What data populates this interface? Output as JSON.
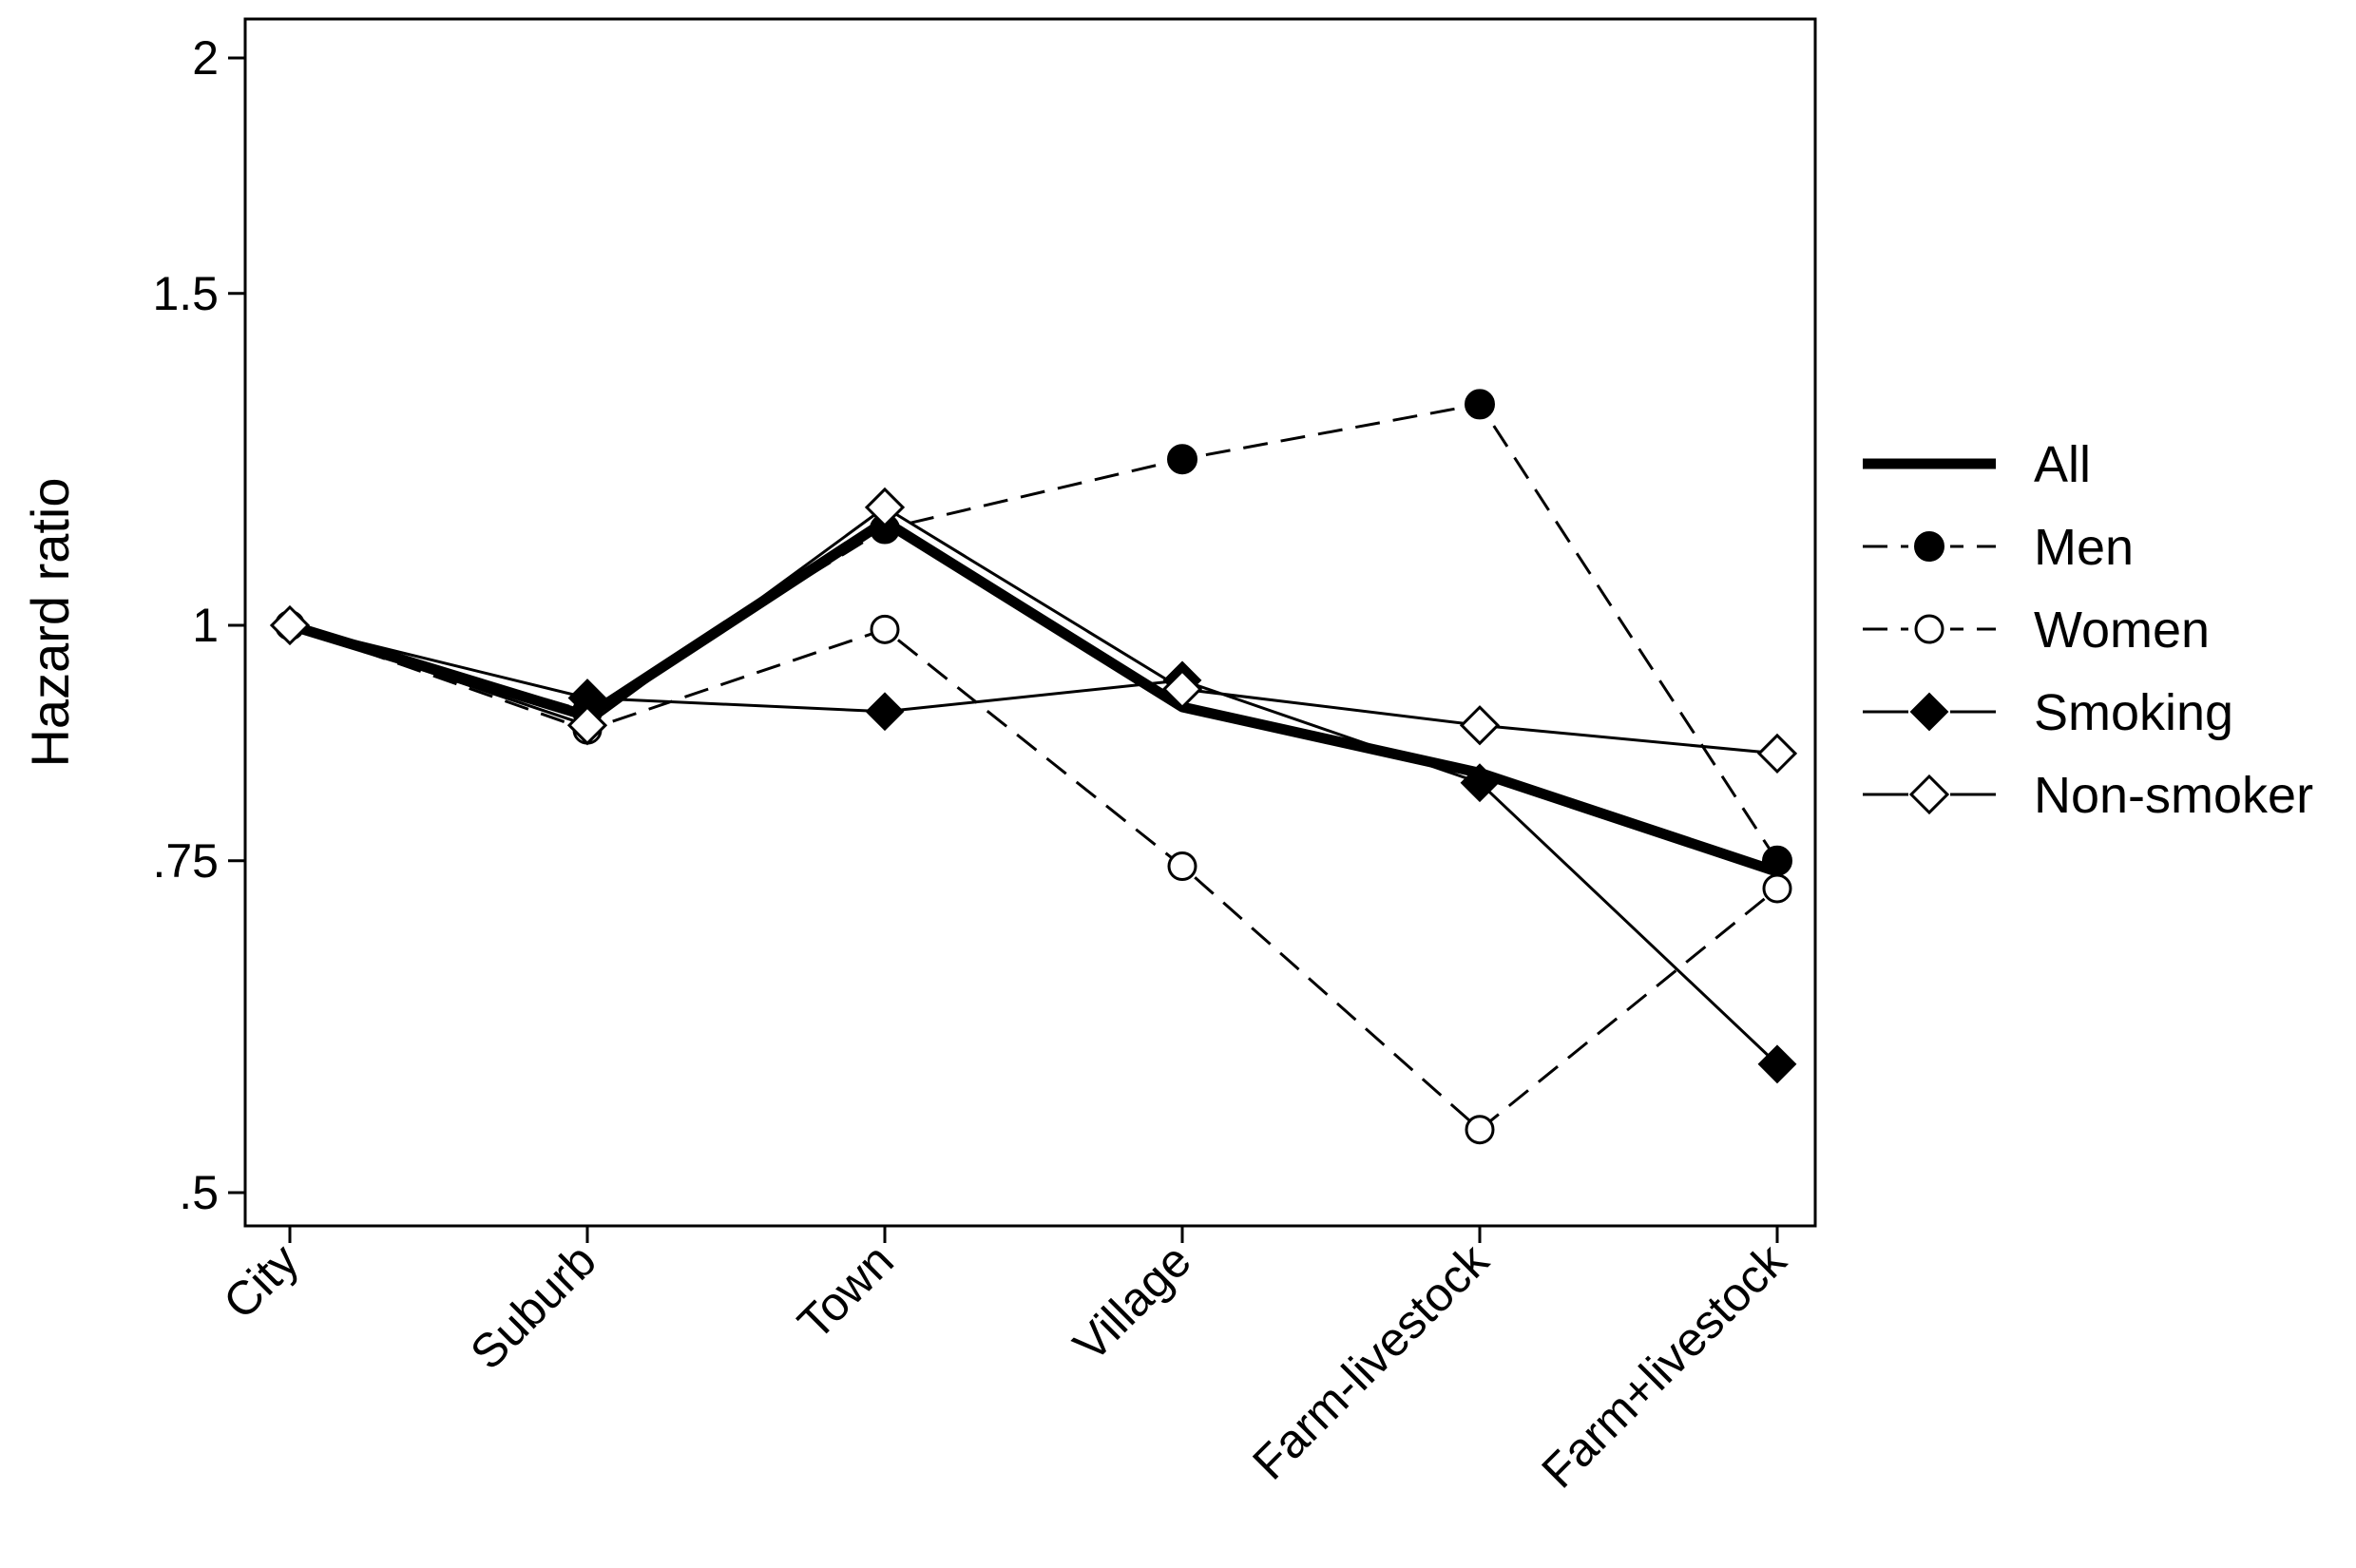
{
  "chart_data": {
    "type": "line",
    "title": "",
    "xlabel": "",
    "ylabel": "Hazard ratio",
    "y_scale": "log",
    "ylim": [
      0.48,
      2.05
    ],
    "yticks": [
      {
        "value": 0.5,
        "label": ".5"
      },
      {
        "value": 0.75,
        "label": ".75"
      },
      {
        "value": 1,
        "label": "1"
      },
      {
        "value": 1.5,
        "label": "1.5"
      },
      {
        "value": 2,
        "label": "2"
      }
    ],
    "categories": [
      "City",
      "Suburb",
      "Town",
      "Village",
      "Farm-livestock",
      "Farm+livestock"
    ],
    "grid": false,
    "legend_position": "right",
    "series": [
      {
        "name": "All",
        "line": "solid-thick",
        "marker": "none",
        "values": [
          1.0,
          0.895,
          1.135,
          0.905,
          0.835,
          0.74
        ]
      },
      {
        "name": "Men",
        "line": "dashed",
        "marker": "filled-circle",
        "values": [
          1.0,
          0.9,
          1.125,
          1.225,
          1.31,
          0.75
        ]
      },
      {
        "name": "Women",
        "line": "dashed",
        "marker": "hollow-circle",
        "values": [
          1.0,
          0.88,
          0.995,
          0.745,
          0.54,
          0.725
        ]
      },
      {
        "name": "Smoking",
        "line": "solid",
        "marker": "filled-diamond",
        "values": [
          1.0,
          0.915,
          0.9,
          0.935,
          0.825,
          0.585
        ]
      },
      {
        "name": "Non-smoker",
        "line": "solid",
        "marker": "hollow-diamond",
        "values": [
          1.0,
          0.885,
          1.155,
          0.925,
          0.885,
          0.855
        ]
      }
    ]
  }
}
